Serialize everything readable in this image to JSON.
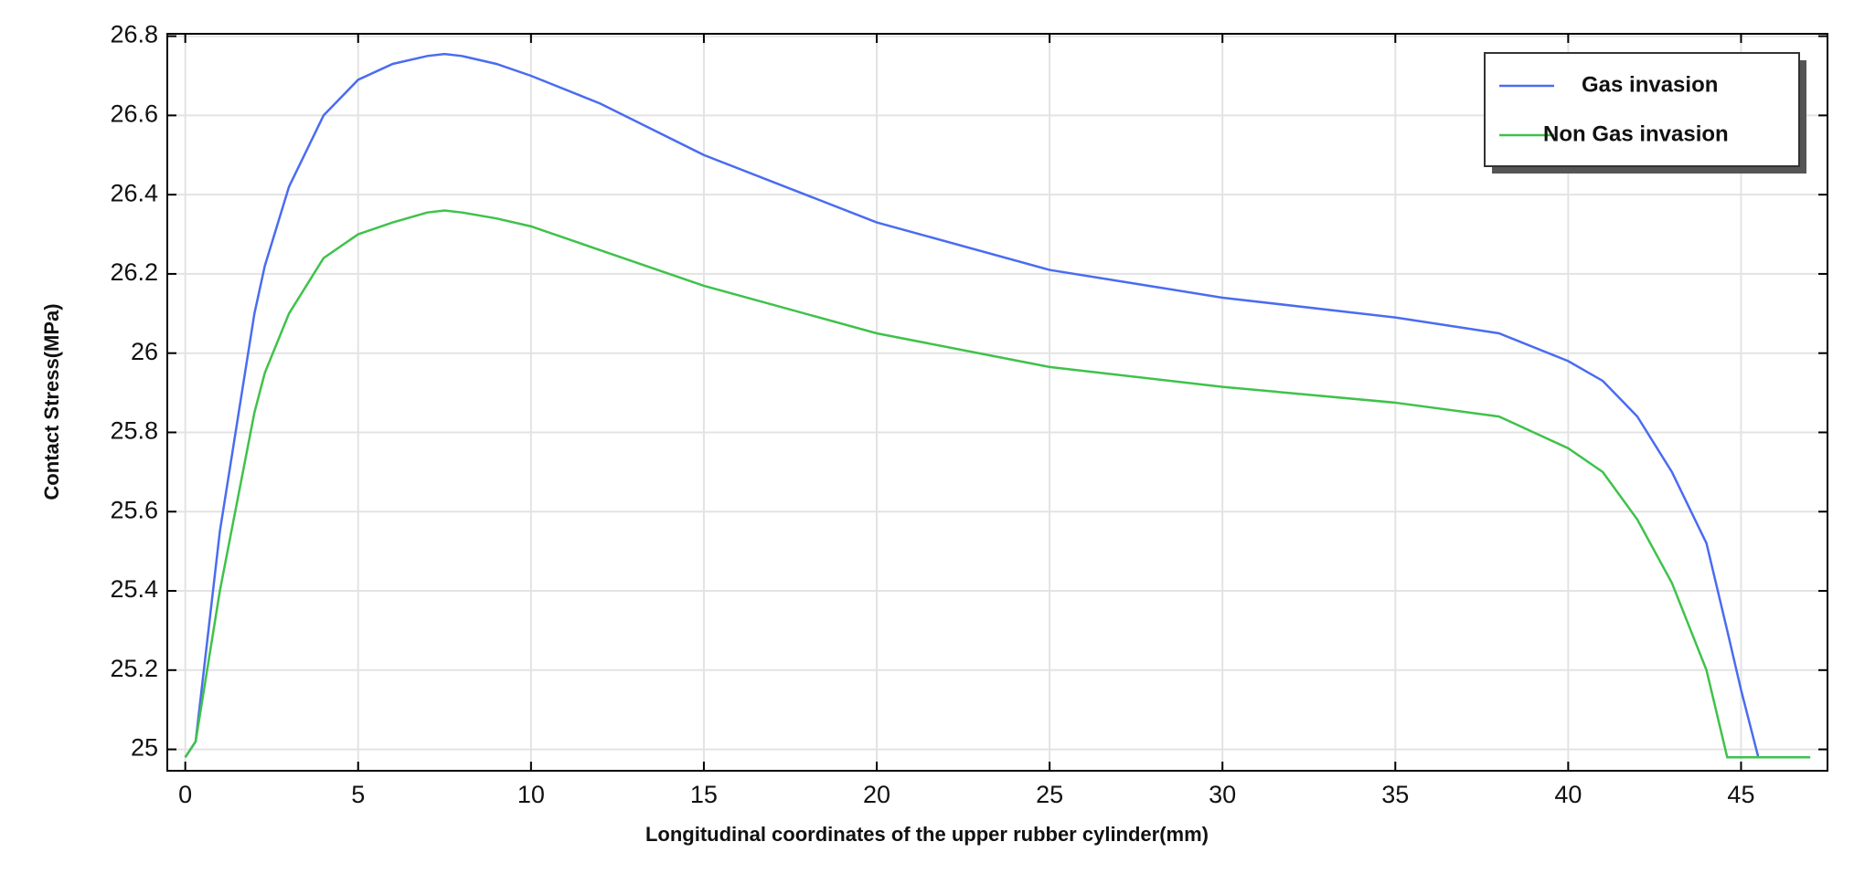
{
  "chart_data": {
    "type": "line",
    "xlabel": "Longitudinal coordinates of the upper rubber cylinder(mm)",
    "ylabel": "Contact Stress(MPa)",
    "x": [
      0,
      0.3,
      1,
      2,
      2.3,
      3,
      4,
      5,
      6,
      7,
      7.5,
      8,
      9,
      10,
      12,
      15,
      20,
      25,
      30,
      35,
      38,
      40,
      41,
      42,
      43,
      44,
      44.6,
      45,
      45.5,
      47
    ],
    "series": [
      {
        "name": "Gas invasion",
        "color": "#4a6cf0",
        "values": [
          24.98,
          25.02,
          25.55,
          26.1,
          26.22,
          26.42,
          26.6,
          26.69,
          26.73,
          26.75,
          26.755,
          26.75,
          26.73,
          26.7,
          26.63,
          26.5,
          26.33,
          26.21,
          26.14,
          26.09,
          26.05,
          25.98,
          25.93,
          25.84,
          25.7,
          25.52,
          25.3,
          25.15,
          24.98,
          24.98
        ]
      },
      {
        "name": "Non Gas invasion",
        "color": "#3fc24a",
        "values": [
          24.98,
          25.02,
          25.4,
          25.85,
          25.95,
          26.1,
          26.24,
          26.3,
          26.33,
          26.355,
          26.36,
          26.355,
          26.34,
          26.32,
          26.26,
          26.17,
          26.05,
          25.965,
          25.915,
          25.875,
          25.84,
          25.76,
          25.7,
          25.58,
          25.42,
          25.2,
          24.98,
          24.98,
          24.98,
          24.98
        ]
      }
    ],
    "xlim": [
      -0.52,
      47.5
    ],
    "ylim": [
      24.946,
      26.806
    ],
    "xticks": [
      0,
      5,
      10,
      15,
      20,
      25,
      30,
      35,
      40,
      45
    ],
    "yticks": [
      25,
      25.2,
      25.4,
      25.6,
      25.8,
      26,
      26.2,
      26.4,
      26.6,
      26.8
    ],
    "grid": true,
    "legend": "upper right"
  }
}
